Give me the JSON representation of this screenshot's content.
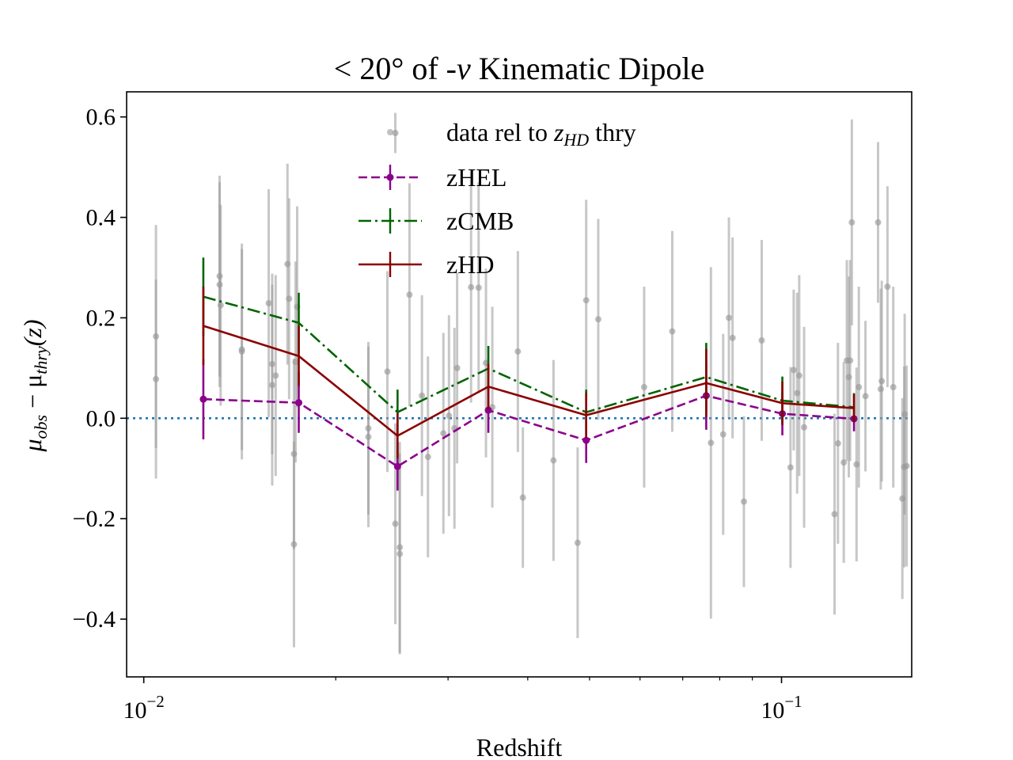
{
  "chart_data": {
    "type": "scatter",
    "title_prefix": "< 20° of -",
    "title_italic": "v",
    "title_suffix": " Kinematic Dipole",
    "xlabel": "Redshift",
    "ylabel_mu": "μ",
    "ylabel_obs": "obs",
    "ylabel_minus": " − μ",
    "ylabel_thry": "thry",
    "ylabel_z": "(z)",
    "xscale": "log",
    "xlim": [
      0.0094,
      0.16
    ],
    "ylim": [
      -0.515,
      0.65
    ],
    "yticks": [
      {
        "v": 0.6,
        "label": "0.6"
      },
      {
        "v": 0.4,
        "label": "0.4"
      },
      {
        "v": 0.2,
        "label": "0.2"
      },
      {
        "v": 0.0,
        "label": "0.0"
      },
      {
        "v": -0.2,
        "label": "−0.2"
      },
      {
        "v": -0.4,
        "label": "−0.4"
      }
    ],
    "xticks_major": [
      {
        "v": 0.01,
        "base": "10",
        "exp": "−2"
      },
      {
        "v": 0.1,
        "base": "10",
        "exp": "−1"
      }
    ],
    "xticks_minor": [
      0.02,
      0.03,
      0.04,
      0.05,
      0.06,
      0.07,
      0.08,
      0.09
    ],
    "reference_line": 0.0,
    "legend": {
      "position": "upper-center",
      "data_prefix": "data rel to ",
      "data_italic": "z",
      "data_sub": "HD",
      "data_suffix": " thry",
      "zhel": "zHEL",
      "zcmb": "zCMB",
      "zhd": "zHD"
    },
    "colors": {
      "data": "#999999",
      "zHEL": "#8b008b",
      "zCMB": "#006400",
      "zHD": "#8b0000",
      "reference": "#1f77b4"
    },
    "data_points": [
      {
        "x": 0.01045,
        "y": 0.163,
        "err": 0.222
      },
      {
        "x": 0.01045,
        "y": 0.078,
        "err": 0.198
      },
      {
        "x": 0.01315,
        "y": 0.283,
        "err": 0.2
      },
      {
        "x": 0.01315,
        "y": 0.266,
        "err": 0.204
      },
      {
        "x": 0.0132,
        "y": 0.225,
        "err": 0.2
      },
      {
        "x": 0.01425,
        "y": 0.137,
        "err": 0.2
      },
      {
        "x": 0.01425,
        "y": 0.133,
        "err": 0.215
      },
      {
        "x": 0.0157,
        "y": 0.229,
        "err": 0.227
      },
      {
        "x": 0.0159,
        "y": 0.108,
        "err": 0.18
      },
      {
        "x": 0.0159,
        "y": 0.066,
        "err": 0.2
      },
      {
        "x": 0.0161,
        "y": 0.085,
        "err": 0.2
      },
      {
        "x": 0.0168,
        "y": 0.307,
        "err": 0.2
      },
      {
        "x": 0.0169,
        "y": 0.238,
        "err": 0.2
      },
      {
        "x": 0.0172,
        "y": -0.071,
        "err": 0.19
      },
      {
        "x": 0.0173,
        "y": 0.112,
        "err": 0.2
      },
      {
        "x": 0.0174,
        "y": 0.222,
        "err": 0.2
      },
      {
        "x": 0.0172,
        "y": -0.251,
        "err": 0.205
      },
      {
        "x": 0.0225,
        "y": -0.02,
        "err": 0.172
      },
      {
        "x": 0.0225,
        "y": -0.037,
        "err": 0.18
      },
      {
        "x": 0.0241,
        "y": 0.093,
        "err": 0.2
      },
      {
        "x": 0.0248,
        "y": 0.568,
        "err": 0.04
      },
      {
        "x": 0.0248,
        "y": -0.21,
        "err": 0.2
      },
      {
        "x": 0.0252,
        "y": -0.257,
        "err": 0.21
      },
      {
        "x": 0.0252,
        "y": -0.27,
        "err": 0.2
      },
      {
        "x": 0.0261,
        "y": 0.246,
        "err": 0.222
      },
      {
        "x": 0.0273,
        "y": 0.045,
        "err": 0.2
      },
      {
        "x": 0.0279,
        "y": -0.077,
        "err": 0.2
      },
      {
        "x": 0.0295,
        "y": -0.03,
        "err": 0.2
      },
      {
        "x": 0.0301,
        "y": 0.005,
        "err": 0.2
      },
      {
        "x": 0.0307,
        "y": -0.02,
        "err": 0.2
      },
      {
        "x": 0.031,
        "y": 0.1,
        "err": 0.19
      },
      {
        "x": 0.0326,
        "y": 0.261,
        "err": 0.23
      },
      {
        "x": 0.0335,
        "y": 0.26,
        "err": 0.21
      },
      {
        "x": 0.0344,
        "y": 0.11,
        "err": 0.188
      },
      {
        "x": 0.0352,
        "y": 0.022,
        "err": 0.2
      },
      {
        "x": 0.0386,
        "y": 0.133,
        "err": 0.2
      },
      {
        "x": 0.0393,
        "y": -0.158,
        "err": 0.14
      },
      {
        "x": 0.0439,
        "y": -0.084,
        "err": 0.2
      },
      {
        "x": 0.0479,
        "y": -0.248,
        "err": 0.19
      },
      {
        "x": 0.0494,
        "y": 0.235,
        "err": 0.2
      },
      {
        "x": 0.0516,
        "y": 0.197,
        "err": 0.2
      },
      {
        "x": 0.0609,
        "y": 0.062,
        "err": 0.2
      },
      {
        "x": 0.0674,
        "y": 0.173,
        "err": 0.2
      },
      {
        "x": 0.0775,
        "y": -0.049,
        "err": 0.35
      },
      {
        "x": 0.081,
        "y": -0.032,
        "err": 0.2
      },
      {
        "x": 0.0827,
        "y": 0.2,
        "err": 0.2
      },
      {
        "x": 0.0838,
        "y": 0.16,
        "err": 0.2
      },
      {
        "x": 0.0873,
        "y": -0.166,
        "err": 0.17
      },
      {
        "x": 0.0931,
        "y": 0.155,
        "err": 0.2
      },
      {
        "x": 0.1033,
        "y": -0.098,
        "err": 0.2
      },
      {
        "x": 0.1045,
        "y": 0.096,
        "err": 0.16
      },
      {
        "x": 0.1058,
        "y": 0.05,
        "err": 0.2
      },
      {
        "x": 0.1066,
        "y": 0.085,
        "err": 0.2
      },
      {
        "x": 0.1085,
        "y": -0.018,
        "err": 0.2
      },
      {
        "x": 0.1211,
        "y": -0.191,
        "err": 0.2
      },
      {
        "x": 0.1226,
        "y": -0.05,
        "err": 0.2
      },
      {
        "x": 0.1252,
        "y": -0.088,
        "err": 0.2
      },
      {
        "x": 0.1266,
        "y": 0.115,
        "err": 0.2
      },
      {
        "x": 0.1275,
        "y": 0.082,
        "err": 0.2
      },
      {
        "x": 0.1281,
        "y": 0.115,
        "err": 0.2
      },
      {
        "x": 0.1289,
        "y": 0.39,
        "err": 0.205
      },
      {
        "x": 0.1311,
        "y": -0.092,
        "err": 0.193
      },
      {
        "x": 0.1322,
        "y": 0.062,
        "err": 0.2
      },
      {
        "x": 0.1354,
        "y": 0.044,
        "err": 0.15
      },
      {
        "x": 0.1417,
        "y": 0.39,
        "err": 0.16
      },
      {
        "x": 0.1431,
        "y": 0.058,
        "err": 0.2
      },
      {
        "x": 0.1436,
        "y": 0.074,
        "err": 0.2
      },
      {
        "x": 0.1466,
        "y": 0.262,
        "err": 0.2
      },
      {
        "x": 0.1497,
        "y": 0.062,
        "err": 0.2
      },
      {
        "x": 0.1547,
        "y": -0.16,
        "err": 0.2
      },
      {
        "x": 0.1557,
        "y": -0.097,
        "err": 0.2
      },
      {
        "x": 0.156,
        "y": 0.008,
        "err": 0.2
      },
      {
        "x": 0.1571,
        "y": -0.095,
        "err": 0.2
      }
    ],
    "series": [
      {
        "name": "zHEL",
        "style": "dashed",
        "markers": true,
        "x": [
          0.0124,
          0.0175,
          0.025,
          0.0347,
          0.0494,
          0.0762,
          0.1003,
          0.1299
        ],
        "y": [
          0.038,
          0.031,
          -0.096,
          0.016,
          -0.044,
          0.045,
          0.009,
          -0.001
        ],
        "err": [
          0.08,
          0.06,
          0.048,
          0.045,
          0.045,
          0.068,
          0.043,
          0.025
        ]
      },
      {
        "name": "zCMB",
        "style": "dashdot",
        "markers": false,
        "x": [
          0.0124,
          0.0175,
          0.025,
          0.0347,
          0.0494,
          0.0762,
          0.1003,
          0.1299
        ],
        "y": [
          0.242,
          0.19,
          0.012,
          0.099,
          0.012,
          0.082,
          0.035,
          0.022
        ],
        "err": [
          0.078,
          0.06,
          0.045,
          0.045,
          0.045,
          0.068,
          0.048,
          0.028
        ]
      },
      {
        "name": "zHD",
        "style": "solid",
        "markers": false,
        "x": [
          0.0124,
          0.0175,
          0.025,
          0.0347,
          0.0494,
          0.0762,
          0.1003,
          0.1299
        ],
        "y": [
          0.184,
          0.124,
          -0.035,
          0.063,
          0.006,
          0.07,
          0.03,
          0.02
        ],
        "err": [
          0.078,
          0.06,
          0.045,
          0.045,
          0.045,
          0.068,
          0.043,
          0.028
        ]
      }
    ]
  }
}
